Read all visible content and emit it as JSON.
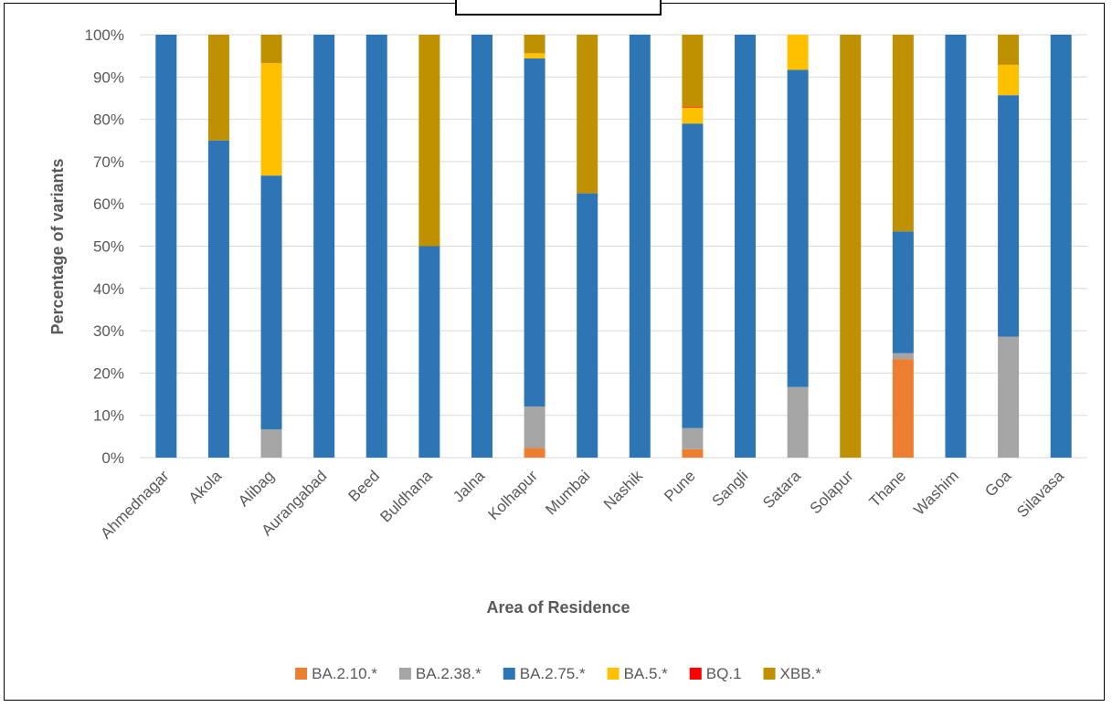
{
  "chart_data": {
    "type": "bar",
    "stacked": true,
    "percent_stacked": true,
    "title": "",
    "xlabel": "Area of Residence",
    "ylabel": "Percentage of variants",
    "ylim": [
      0,
      100
    ],
    "yticks": [
      "0%",
      "10%",
      "20%",
      "30%",
      "40%",
      "50%",
      "60%",
      "70%",
      "80%",
      "90%",
      "100%"
    ],
    "grid": true,
    "legend_position": "bottom",
    "categories": [
      "Ahmednagar",
      "Akola",
      "Alibag",
      "Aurangabad",
      "Beed",
      "Buldhana",
      "Jalna",
      "Kolhapur",
      "Mumbai",
      "Nashik",
      "Pune",
      "Sangli",
      "Satara",
      "Solapur",
      "Thane",
      "Washim",
      "Goa",
      "Silavasa"
    ],
    "series": [
      {
        "name": "BA.2.10.*",
        "color": "#ED7D31",
        "values": [
          0,
          0,
          0,
          0,
          0,
          0,
          0,
          2.3,
          0,
          0,
          2,
          0,
          0,
          0,
          23.3,
          0,
          0,
          0
        ]
      },
      {
        "name": "BA.2.38.*",
        "color": "#A5A5A5",
        "values": [
          0,
          0,
          6.7,
          0,
          0,
          0,
          0,
          9.8,
          0,
          0,
          5,
          0,
          16.7,
          0,
          1.4,
          0,
          28.6,
          0
        ]
      },
      {
        "name": "BA.2.75.*",
        "color": "#2E75B6",
        "values": [
          100,
          75,
          60,
          100,
          100,
          50,
          100,
          82.3,
          62.5,
          100,
          72,
          100,
          75,
          0,
          28.8,
          100,
          57.1,
          100
        ]
      },
      {
        "name": "BA.5.*",
        "color": "#FFC000",
        "values": [
          0,
          0,
          26.6,
          0,
          0,
          0,
          0,
          1.2,
          0,
          0,
          3.8,
          0,
          8.3,
          0,
          0,
          0,
          7.2,
          0
        ]
      },
      {
        "name": "BQ.1",
        "color": "#FF0000",
        "values": [
          0,
          0,
          0,
          0,
          0,
          0,
          0,
          0,
          0,
          0,
          0.2,
          0,
          0,
          0,
          0,
          0,
          0,
          0
        ]
      },
      {
        "name": "XBB.*",
        "color": "#BF9000",
        "values": [
          0,
          25,
          6.7,
          0,
          0,
          50,
          0,
          4.4,
          37.5,
          0,
          17,
          0,
          0,
          100,
          46.5,
          0,
          7.1,
          0
        ]
      }
    ]
  }
}
